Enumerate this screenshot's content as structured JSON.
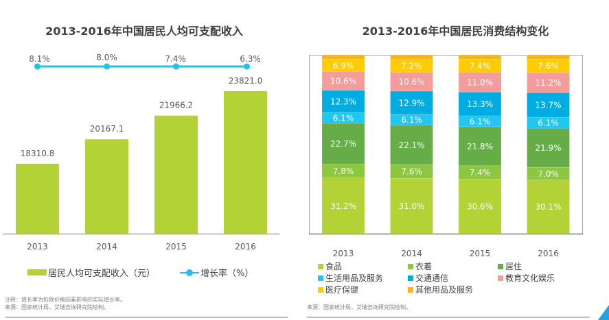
{
  "chart_data": [
    {
      "type": "bar",
      "title": "2013-2016年中国居民人均可支配收入",
      "categories": [
        "2013",
        "2014",
        "2015",
        "2016"
      ],
      "series": [
        {
          "name": "居民人均可支配收入（元）",
          "type": "bar",
          "color": "#b3d235",
          "values": [
            18310.8,
            20167.1,
            21966.2,
            23821.0
          ],
          "labels": [
            "18310.8",
            "20167.1",
            "21966.2",
            "23821.0"
          ]
        },
        {
          "name": "增长率（%）",
          "type": "line",
          "color": "#21c1ea",
          "values": [
            8.1,
            8.0,
            7.4,
            6.3
          ],
          "labels": [
            "8.1%",
            "8.0%",
            "7.4%",
            "6.3%"
          ]
        }
      ],
      "legend": [
        "居民人均可支配收入（元）",
        "增长率（%）"
      ],
      "legend_position": "bottom",
      "notes": [
        "注释：增长率为扣除价格因素影响的实际增长率。",
        "来源：国家统计局，艾瑞咨询研究院绘制。"
      ]
    },
    {
      "type": "bar",
      "stacked": true,
      "title": "2013-2016年中国居民消费结构变化",
      "categories": [
        "2013",
        "2014",
        "2015",
        "2016"
      ],
      "ylim": [
        0,
        100
      ],
      "series": [
        {
          "name": "食品",
          "color": "#b3d235",
          "values": [
            31.2,
            31.0,
            30.6,
            30.1
          ]
        },
        {
          "name": "衣着",
          "color": "#8dc63f",
          "values": [
            7.8,
            7.6,
            7.4,
            7.0
          ]
        },
        {
          "name": "居住",
          "color": "#66ad47",
          "values": [
            22.7,
            22.1,
            21.8,
            21.9
          ]
        },
        {
          "name": "生活用品及服务",
          "color": "#21c7f0",
          "values": [
            6.1,
            6.1,
            6.1,
            6.1
          ]
        },
        {
          "name": "交通通信",
          "color": "#00ade3",
          "values": [
            12.3,
            12.9,
            13.3,
            13.7
          ]
        },
        {
          "name": "教育文化娱乐",
          "color": "#f39c9c",
          "values": [
            10.6,
            10.6,
            11.0,
            11.2
          ]
        },
        {
          "name": "医疗保健",
          "color": "#ffcc00",
          "values": [
            6.9,
            7.2,
            7.4,
            7.6
          ]
        },
        {
          "name": "其他用品及服务",
          "color": "#fbb21f",
          "values": [
            2.4,
            2.5,
            2.4,
            2.4
          ]
        }
      ],
      "legend_position": "bottom",
      "notes": [
        "来源：国家统计局，艾瑞咨询研究院绘制。"
      ]
    }
  ]
}
